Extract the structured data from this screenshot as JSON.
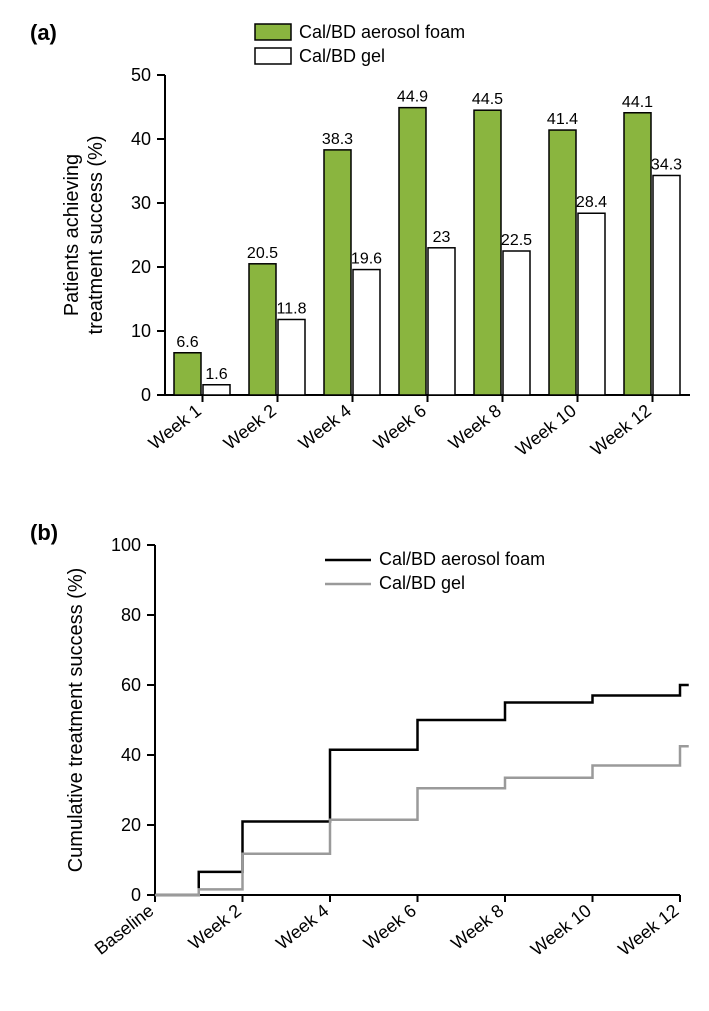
{
  "panel_a": {
    "label": "(a)",
    "type": "bar",
    "categories": [
      "Week 1",
      "Week 2",
      "Week 4",
      "Week 6",
      "Week 8",
      "Week 10",
      "Week 12"
    ],
    "series": [
      {
        "name": "Cal/BD aerosol foam",
        "color": "#8ab53f",
        "edge": "#000000",
        "values": [
          6.6,
          20.5,
          38.3,
          44.9,
          44.5,
          41.4,
          44.1
        ]
      },
      {
        "name": "Cal/BD gel",
        "color": "#ffffff",
        "edge": "#000000",
        "values": [
          1.6,
          11.8,
          19.6,
          23,
          22.5,
          28.4,
          34.3
        ]
      }
    ],
    "ylim": [
      0,
      50
    ],
    "yticks": [
      0,
      10,
      20,
      30,
      40,
      50
    ],
    "ylabel": "Patients achieving\ntreatment success (%)",
    "bar_group_gap": 0.22,
    "bar_width": 0.36,
    "legend_swatch_stroke": "#000000",
    "label_fontsize": 16,
    "tick_fontsize": 18,
    "ylabel_fontsize": 20
  },
  "panel_b": {
    "label": "(b)",
    "type": "step-line",
    "x_labels": [
      "Baseline",
      "Week 2",
      "Week 4",
      "Week 6",
      "Week 8",
      "Week 10",
      "Week 12"
    ],
    "x_idx": [
      0,
      1,
      2,
      3,
      4,
      5,
      6
    ],
    "series": [
      {
        "name": "Cal/BD aerosol foam",
        "color": "#000000",
        "points": [
          [
            0,
            0
          ],
          [
            0.5,
            6.6
          ],
          [
            1,
            21
          ],
          [
            2,
            41.5
          ],
          [
            3,
            50
          ],
          [
            4,
            55
          ],
          [
            5,
            57
          ],
          [
            6,
            60
          ]
        ]
      },
      {
        "name": "Cal/BD gel",
        "color": "#9a9a9a",
        "points": [
          [
            0,
            0
          ],
          [
            0.5,
            1.6
          ],
          [
            1,
            11.8
          ],
          [
            2,
            21.5
          ],
          [
            3,
            30.5
          ],
          [
            4,
            33.5
          ],
          [
            5,
            37
          ],
          [
            6,
            42.5
          ]
        ]
      }
    ],
    "ylim": [
      0,
      100
    ],
    "yticks": [
      0,
      20,
      40,
      60,
      80,
      100
    ],
    "ylabel": "Cumulative treatment success (%)",
    "tick_fontsize": 18,
    "ylabel_fontsize": 20,
    "line_width": 2.5
  },
  "colors": {
    "background": "#ffffff",
    "axis": "#000000",
    "text": "#000000"
  }
}
